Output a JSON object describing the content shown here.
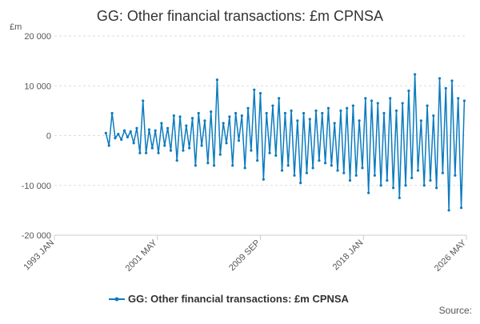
{
  "chart_data": {
    "type": "line",
    "title": "GG: Other financial transactions: £m CPNSA",
    "y_unit": "£m",
    "source": "Source:",
    "ylim": [
      -20000,
      20000
    ],
    "yticks": [
      {
        "value": -20000,
        "label": "-20 000"
      },
      {
        "value": -10000,
        "label": "-10 000"
      },
      0,
      {
        "value": 10000,
        "label": "10 000"
      },
      {
        "value": 20000,
        "label": "20 000"
      }
    ],
    "xlim": [
      "1993 JAN",
      "2026 MAY"
    ],
    "xticks": [
      "1993 JAN",
      "2001 MAY",
      "2009 SEP",
      "2018 JAN",
      "2026 MAY"
    ],
    "grid": true,
    "legend": "bottom",
    "x": [
      "1997 MAR",
      "1997 JUN",
      "1997 SEP",
      "1997 DEC",
      "1998 MAR",
      "1998 JUN",
      "1998 SEP",
      "1998 DEC",
      "1999 MAR",
      "1999 JUN",
      "1999 SEP",
      "1999 DEC",
      "2000 MAR",
      "2000 JUN",
      "2000 SEP",
      "2000 DEC",
      "2001 MAR",
      "2001 JUN",
      "2001 SEP",
      "2001 DEC",
      "2002 MAR",
      "2002 JUN",
      "2002 SEP",
      "2002 DEC",
      "2003 MAR",
      "2003 JUN",
      "2003 SEP",
      "2003 DEC",
      "2004 MAR",
      "2004 JUN",
      "2004 SEP",
      "2004 DEC",
      "2005 MAR",
      "2005 JUN",
      "2005 SEP",
      "2005 DEC",
      "2006 MAR",
      "2006 JUN",
      "2006 SEP",
      "2006 DEC",
      "2007 MAR",
      "2007 JUN",
      "2007 SEP",
      "2007 DEC",
      "2008 MAR",
      "2008 JUN",
      "2008 SEP",
      "2008 DEC",
      "2009 MAR",
      "2009 JUN",
      "2009 SEP",
      "2009 DEC",
      "2010 MAR",
      "2010 JUN",
      "2010 SEP",
      "2010 DEC",
      "2011 MAR",
      "2011 JUN",
      "2011 SEP",
      "2011 DEC",
      "2012 MAR",
      "2012 JUN",
      "2012 SEP",
      "2012 DEC",
      "2013 MAR",
      "2013 JUN",
      "2013 SEP",
      "2013 DEC",
      "2014 MAR",
      "2014 JUN",
      "2014 SEP",
      "2014 DEC",
      "2015 MAR",
      "2015 JUN",
      "2015 SEP",
      "2015 DEC",
      "2016 MAR",
      "2016 JUN",
      "2016 SEP",
      "2016 DEC",
      "2017 MAR",
      "2017 JUN",
      "2017 SEP",
      "2017 DEC",
      "2018 MAR",
      "2018 JUN",
      "2018 SEP",
      "2018 DEC",
      "2019 MAR",
      "2019 JUN",
      "2019 SEP",
      "2019 DEC",
      "2020 MAR",
      "2020 JUN",
      "2020 SEP",
      "2020 DEC",
      "2021 MAR",
      "2021 JUN",
      "2021 SEP",
      "2021 DEC",
      "2022 MAR",
      "2022 JUN",
      "2022 SEP",
      "2022 DEC",
      "2023 MAR",
      "2023 JUN",
      "2023 SEP",
      "2023 DEC",
      "2024 MAR",
      "2024 JUN",
      "2024 SEP",
      "2024 DEC",
      "2025 MAR",
      "2025 JUN",
      "2025 SEP",
      "2025 DEC",
      "2026 MAR"
    ],
    "series": [
      {
        "name": "GG: Other financial transactions: £m CPNSA",
        "color": "#0b7bbf",
        "values": [
          500,
          -2000,
          4500,
          -500,
          300,
          -800,
          1000,
          -300,
          800,
          -1500,
          1500,
          -3500,
          7000,
          -3500,
          1200,
          -2500,
          1000,
          -3500,
          2500,
          -2000,
          1500,
          -3000,
          4000,
          -5000,
          3800,
          -3000,
          2000,
          -2500,
          3500,
          -6000,
          4500,
          -2000,
          3000,
          -5500,
          4800,
          -6000,
          11200,
          -3800,
          2500,
          -1500,
          3800,
          -6000,
          4500,
          -1000,
          4000,
          -6500,
          5500,
          -3000,
          9200,
          -5000,
          8500,
          -8800,
          4500,
          -3500,
          6000,
          -4000,
          7500,
          -7000,
          4500,
          -6000,
          5000,
          -8000,
          3000,
          -9500,
          4500,
          -7500,
          3300,
          -6500,
          5000,
          -5000,
          4500,
          -5500,
          5500,
          -6000,
          2500,
          -7000,
          5000,
          -7500,
          5500,
          -9000,
          6000,
          -8000,
          3000,
          -6500,
          7500,
          -11500,
          7000,
          -8000,
          6500,
          -10000,
          4500,
          -9000,
          7500,
          -10500,
          5000,
          -12500,
          6500,
          -10000,
          9000,
          -8500,
          12300,
          -7000,
          3000,
          -10000,
          6000,
          -9000,
          4000,
          -10500,
          11500,
          -7500,
          9500,
          -15000,
          11000,
          -8000,
          7500,
          -14500,
          7000
        ]
      }
    ]
  }
}
